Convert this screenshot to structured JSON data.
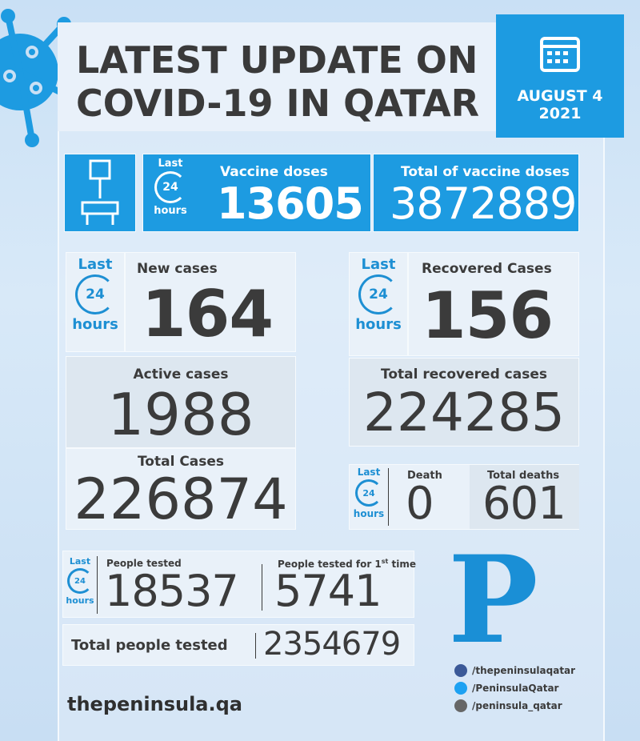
{
  "header": {
    "title_lines": [
      "LATEST UPDATE ON",
      "COVID-19 IN QATAR"
    ],
    "date": {
      "day": "AUGUST 4",
      "year": "2021"
    }
  },
  "badge": {
    "top": "Last",
    "number": "24",
    "bottom": "hours"
  },
  "vaccine": {
    "daily_label": "Vaccine doses",
    "daily": 13605,
    "total_label": "Total of vaccine doses",
    "total": 3872889
  },
  "cases": {
    "new_label": "New cases",
    "new": 164,
    "active_label": "Active cases",
    "active": 1988,
    "total_label": "Total Cases",
    "total": 226874
  },
  "recovered": {
    "new_label": "Recovered Cases",
    "new": 156,
    "total_label": "Total recovered cases",
    "total": 224285
  },
  "deaths": {
    "new_label": "Death",
    "new": 0,
    "total_label": "Total deaths",
    "total": 601
  },
  "tests": {
    "daily_label": "People tested",
    "daily": 18537,
    "first_label": {
      "before": "People tested for 1",
      "sup": "st",
      "after": " time"
    },
    "first": 5741,
    "total_label": "Total people tested",
    "total": 2354679
  },
  "footer": {
    "logo": "P",
    "website": "thepeninsula.qa",
    "facebook": "/thepeninsulaqatar",
    "twitter": "/PeninsulaQatar",
    "instagram": "/peninsula_qatar"
  }
}
